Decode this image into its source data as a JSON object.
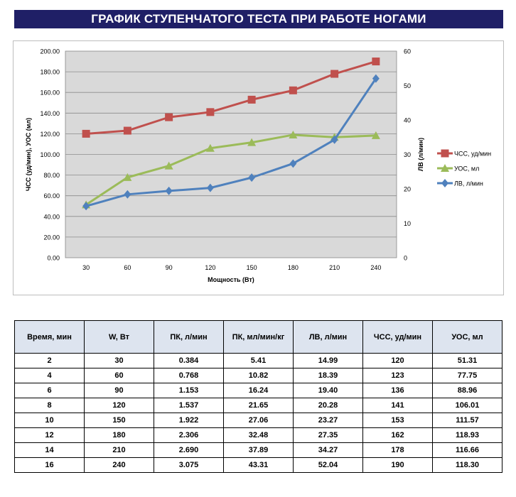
{
  "title": "ГРАФИК СТУПЕНЧАТОГО ТЕСТА ПРИ РАБОТЕ НОГАМИ",
  "chart_data": {
    "type": "line",
    "x": [
      30,
      60,
      90,
      120,
      150,
      180,
      210,
      240
    ],
    "xlabel": "Мощность (Вт)",
    "ylabel_left": "ЧСС (уд/мин), УОС (мл)",
    "ylabel_right": "ЛВ (л/мин)",
    "ylim_left": [
      0,
      200
    ],
    "ylim_right": [
      0,
      60
    ],
    "yticks_left": [
      "0.00",
      "20.00",
      "40.00",
      "60.00",
      "80.00",
      "100.00",
      "120.00",
      "140.00",
      "160.00",
      "180.00",
      "200.00"
    ],
    "yticks_right": [
      "0",
      "10",
      "20",
      "30",
      "40",
      "50",
      "60"
    ],
    "grid": true,
    "legend_position": "right",
    "series": [
      {
        "name": "ЧСС, уд/мин",
        "axis": "left",
        "color": "#c0504d",
        "marker": "square",
        "values": [
          120,
          123,
          136,
          141,
          153,
          162,
          178,
          190
        ]
      },
      {
        "name": "УОС, мл",
        "axis": "left",
        "color": "#9bbb59",
        "marker": "triangle",
        "values": [
          51.31,
          77.75,
          88.96,
          106.01,
          111.57,
          118.93,
          116.66,
          118.3
        ]
      },
      {
        "name": "ЛВ, л/мин",
        "axis": "right",
        "color": "#4f81bd",
        "marker": "diamond",
        "values": [
          14.99,
          18.39,
          19.4,
          20.28,
          23.27,
          27.35,
          34.27,
          52.04
        ]
      }
    ]
  },
  "table": {
    "headers": [
      "Время, мин",
      "W, Вт",
      "ПК, л/мин",
      "ПК, мл/мин/кг",
      "ЛВ, л/мин",
      "ЧСС, уд/мин",
      "УОС, мл"
    ],
    "rows": [
      [
        "2",
        "30",
        "0.384",
        "5.41",
        "14.99",
        "120",
        "51.31"
      ],
      [
        "4",
        "60",
        "0.768",
        "10.82",
        "18.39",
        "123",
        "77.75"
      ],
      [
        "6",
        "90",
        "1.153",
        "16.24",
        "19.40",
        "136",
        "88.96"
      ],
      [
        "8",
        "120",
        "1.537",
        "21.65",
        "20.28",
        "141",
        "106.01"
      ],
      [
        "10",
        "150",
        "1.922",
        "27.06",
        "23.27",
        "153",
        "111.57"
      ],
      [
        "12",
        "180",
        "2.306",
        "32.48",
        "27.35",
        "162",
        "118.93"
      ],
      [
        "14",
        "210",
        "2.690",
        "37.89",
        "34.27",
        "178",
        "116.66"
      ],
      [
        "16",
        "240",
        "3.075",
        "43.31",
        "52.04",
        "190",
        "118.30"
      ]
    ]
  }
}
